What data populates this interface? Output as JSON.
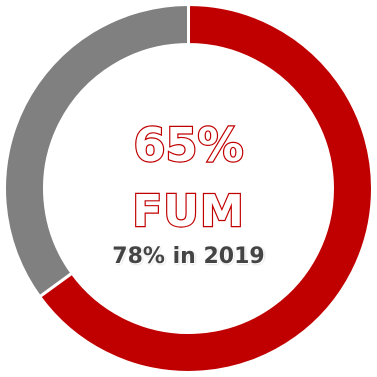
{
  "chart_data": {
    "type": "pie",
    "variant": "donut",
    "slices": [
      {
        "value": 65,
        "color": "#c00000"
      },
      {
        "value": 35,
        "color": "#808080"
      }
    ],
    "center": {
      "value_text": "65%",
      "label": "FUM",
      "comparison": "78% in 2019"
    },
    "colors": {
      "accent": "#c00000",
      "remainder": "#808080",
      "comparison_text": "#444444"
    }
  }
}
